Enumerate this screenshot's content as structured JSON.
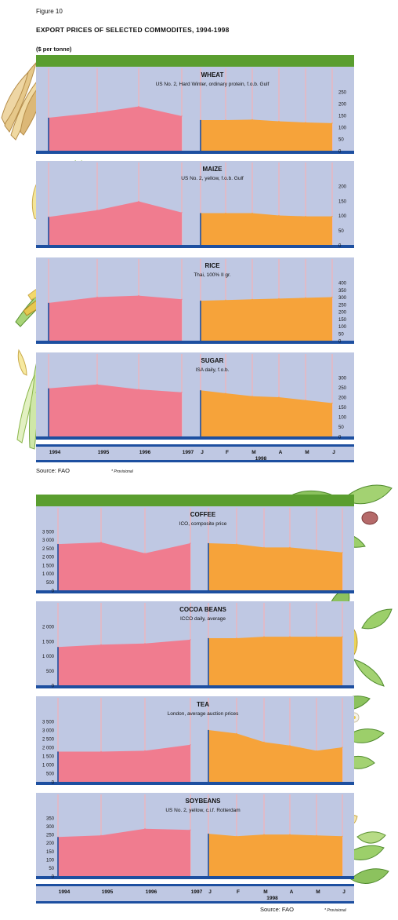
{
  "figure_label": "Figure 10",
  "title": "EXPORT PRICES OF SELECTED COMMODITES, 1994-1998",
  "unit": "($ per tonne)",
  "source_1": "Source: FAO",
  "provisional_1": "* Provisional",
  "source_2": "Source: FAO",
  "provisional_2": "* Provisional",
  "colors": {
    "header_bar": "#5a9e2f",
    "panel_bg": "#bfc8e3",
    "annual_area": "#f07c8f",
    "monthly_area": "#f6a33a",
    "axis": "#1d4fa0",
    "grid": "#f2b2b8"
  },
  "chart_data": [
    {
      "type": "area",
      "title": "WHEAT",
      "subtitle": "US No. 2, Hard Winter, ordinary protein, f.o.b. Gulf",
      "ylim": [
        0,
        250
      ],
      "yticks": [
        "250",
        "200",
        "150",
        "100",
        "50",
        "0"
      ],
      "annual": {
        "x": [
          "1994",
          "1995",
          "1996",
          "1997"
        ],
        "values": [
          140,
          162,
          188,
          147
        ]
      },
      "monthly": {
        "x": [
          "J",
          "F",
          "M",
          "A",
          "M",
          "J"
        ],
        "values": [
          130,
          130,
          132,
          125,
          120,
          117
        ]
      }
    },
    {
      "type": "area",
      "title": "MAIZE",
      "subtitle": "US No. 2, yellow, f.o.b. Gulf",
      "ylim": [
        0,
        200
      ],
      "yticks": [
        "200",
        "150",
        "100",
        "50",
        "0"
      ],
      "annual": {
        "x": [
          "1994",
          "1995",
          "1996",
          "1997"
        ],
        "values": [
          95,
          118,
          148,
          110
        ]
      },
      "monthly": {
        "x": [
          "J",
          "F",
          "M",
          "A",
          "M",
          "J"
        ],
        "values": [
          108,
          108,
          108,
          100,
          97,
          97
        ]
      }
    },
    {
      "type": "area",
      "title": "RICE",
      "subtitle": "Thai, 100% II gr.",
      "ylim": [
        0,
        400
      ],
      "yticks": [
        "400",
        "350",
        "300",
        "250",
        "200",
        "150",
        "100",
        "50",
        "0"
      ],
      "annual": {
        "x": [
          "1994",
          "1995",
          "1996",
          "1997"
        ],
        "values": [
          260,
          300,
          310,
          285
        ]
      },
      "monthly": {
        "x": [
          "J",
          "F",
          "M",
          "A",
          "M",
          "J"
        ],
        "values": [
          275,
          280,
          285,
          290,
          295,
          300
        ]
      }
    },
    {
      "type": "area",
      "title": "SUGAR",
      "subtitle": "ISA daily, f.o.b.",
      "ylim": [
        0,
        300
      ],
      "yticks": [
        "300",
        "250",
        "200",
        "150",
        "100",
        "50",
        "0"
      ],
      "annual": {
        "x": [
          "1994",
          "1995",
          "1996",
          "1997"
        ],
        "values": [
          245,
          265,
          240,
          225
        ]
      },
      "monthly": {
        "x": [
          "J",
          "F",
          "M",
          "A",
          "M",
          "J"
        ],
        "values": [
          235,
          220,
          205,
          200,
          185,
          170
        ]
      }
    },
    {
      "type": "area",
      "title": "COFFEE",
      "subtitle": "ICO, composite price",
      "ylim": [
        0,
        3500
      ],
      "yticks": [
        "3 500",
        "3 000",
        "2 500",
        "2 000",
        "1 500",
        "1 000",
        "500",
        "0"
      ],
      "annual": {
        "x": [
          "1994",
          "1995",
          "1996",
          "1997"
        ],
        "values": [
          2750,
          2850,
          2200,
          2800
        ]
      },
      "monthly": {
        "x": [
          "J",
          "F",
          "M",
          "A",
          "M",
          "J"
        ],
        "values": [
          2800,
          2750,
          2550,
          2550,
          2400,
          2250
        ]
      }
    },
    {
      "type": "area",
      "title": "COCOA BEANS",
      "subtitle": "ICCO daily, average",
      "ylim": [
        0,
        2000
      ],
      "yticks": [
        "2 000",
        "1 500",
        "1 000",
        "500",
        "0"
      ],
      "annual": {
        "x": [
          "1994",
          "1995",
          "1996",
          "1997"
        ],
        "values": [
          1300,
          1380,
          1420,
          1550
        ]
      },
      "monthly": {
        "x": [
          "J",
          "F",
          "M",
          "A",
          "M",
          "J"
        ],
        "values": [
          1600,
          1600,
          1650,
          1650,
          1650,
          1650
        ]
      }
    },
    {
      "type": "area",
      "title": "TEA",
      "subtitle": "London, average auction prices",
      "ylim": [
        0,
        3500
      ],
      "yticks": [
        "3 500",
        "3 000",
        "2 500",
        "2 000",
        "1 500",
        "1 000",
        "500",
        "0"
      ],
      "annual": {
        "x": [
          "1994",
          "1995",
          "1996",
          "1997"
        ],
        "values": [
          1750,
          1750,
          1800,
          2150
        ]
      },
      "monthly": {
        "x": [
          "J",
          "F",
          "M",
          "A",
          "M",
          "J"
        ],
        "values": [
          3000,
          2800,
          2300,
          2100,
          1800,
          2000
        ]
      }
    },
    {
      "type": "area",
      "title": "SOYBEANS",
      "subtitle": "US No. 2, yellow, c.i.f. Rotterdam",
      "ylim": [
        0,
        350
      ],
      "yticks": [
        "350",
        "300",
        "250",
        "200",
        "150",
        "100",
        "50",
        "0"
      ],
      "annual": {
        "x": [
          "1994",
          "1995",
          "1996",
          "1997"
        ],
        "values": [
          235,
          245,
          285,
          278
        ]
      },
      "monthly": {
        "x": [
          "J",
          "F",
          "M",
          "A",
          "M",
          "J"
        ],
        "values": [
          255,
          240,
          250,
          250,
          245,
          240
        ]
      }
    }
  ],
  "x_axis": {
    "years": [
      "1994",
      "1995",
      "1996",
      "1997"
    ],
    "months": [
      "J",
      "F",
      "M",
      "A",
      "M",
      "J"
    ],
    "year_1998": "1998"
  }
}
